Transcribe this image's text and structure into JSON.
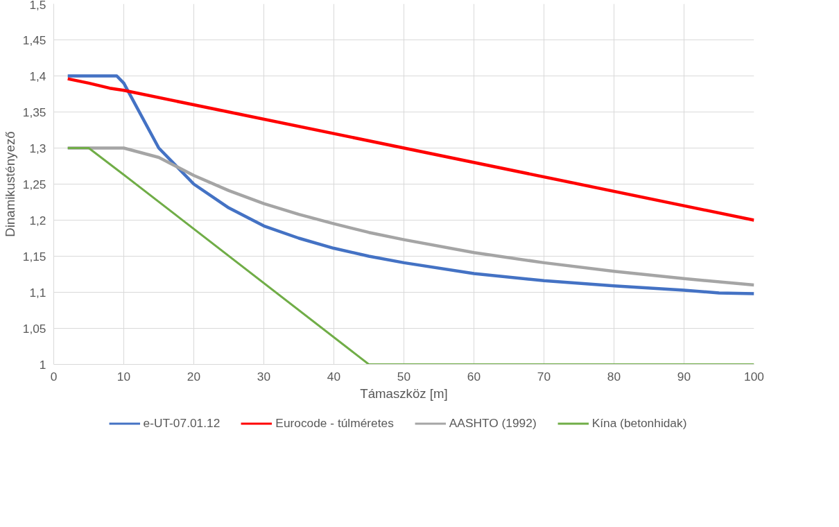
{
  "chart_data": {
    "type": "line",
    "xlabel": "Támaszköz [m]",
    "ylabel": "Dinamikustényező",
    "xlim": [
      0,
      100
    ],
    "xticks": [
      0,
      10,
      20,
      30,
      40,
      50,
      60,
      70,
      80,
      90,
      100
    ],
    "ylim": [
      1,
      1.5
    ],
    "yticks": [
      {
        "value": 1,
        "label": "1"
      },
      {
        "value": 1.05,
        "label": "1,05"
      },
      {
        "value": 1.1,
        "label": "1,1"
      },
      {
        "value": 1.15,
        "label": "1,15"
      },
      {
        "value": 1.2,
        "label": "1,2"
      },
      {
        "value": 1.25,
        "label": "1,25"
      },
      {
        "value": 1.3,
        "label": "1,3"
      },
      {
        "value": 1.35,
        "label": "1,35"
      },
      {
        "value": 1.4,
        "label": "1,4"
      },
      {
        "value": 1.45,
        "label": "1,45"
      },
      {
        "value": 1.5,
        "label": "1,5"
      }
    ],
    "grid": true,
    "legend": "bottom",
    "marker": "none",
    "line_style": "solid",
    "series": [
      {
        "name": "e-UT-07.01.12",
        "color": "#4472c4",
        "x": [
          2,
          9,
          10,
          15,
          20,
          25,
          30,
          35,
          40,
          45,
          50,
          60,
          70,
          80,
          90,
          95,
          100
        ],
        "values": [
          1.4,
          1.4,
          1.39,
          1.3,
          1.25,
          1.217,
          1.192,
          1.175,
          1.161,
          1.15,
          1.141,
          1.126,
          1.116,
          1.109,
          1.103,
          1.099,
          1.098
        ]
      },
      {
        "name": "Eurocode - túlméretes",
        "color": "#ff0000",
        "x": [
          2,
          5,
          8,
          10,
          100
        ],
        "values": [
          1.396,
          1.39,
          1.383,
          1.38,
          1.2
        ]
      },
      {
        "name": "AASHTO (1992)",
        "color": "#a5a5a5",
        "x": [
          2,
          10,
          15,
          20,
          25,
          30,
          35,
          40,
          45,
          50,
          60,
          70,
          80,
          90,
          100
        ],
        "values": [
          1.3,
          1.3,
          1.287,
          1.262,
          1.241,
          1.223,
          1.208,
          1.195,
          1.183,
          1.173,
          1.155,
          1.141,
          1.129,
          1.119,
          1.11
        ]
      },
      {
        "name": "Kína (betonhidak)",
        "color": "#70ad47",
        "x": [
          2,
          5,
          10,
          45,
          100
        ],
        "values": [
          1.3,
          1.3,
          1.263,
          1.0,
          1.0
        ]
      }
    ]
  }
}
